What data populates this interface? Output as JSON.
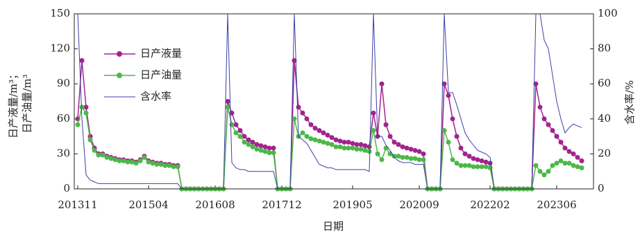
{
  "chart_data": {
    "type": "line",
    "xlabel": "日期",
    "ylabel": [
      "日产液量/m³；",
      "日产油量/m³"
    ],
    "y2label": "含水率/%",
    "categories": [
      "201311",
      "201312",
      "201401",
      "201402",
      "201403",
      "201404",
      "201405",
      "201406",
      "201407",
      "201408",
      "201409",
      "201410",
      "201411",
      "201412",
      "201501",
      "201502",
      "201503",
      "201504",
      "201505",
      "201506",
      "201507",
      "201508",
      "201509",
      "201510",
      "201511",
      "201512",
      "201601",
      "201602",
      "201603",
      "201604",
      "201605",
      "201606",
      "201607",
      "201608",
      "201609",
      "201610",
      "201611",
      "201612",
      "201701",
      "201702",
      "201703",
      "201704",
      "201705",
      "201706",
      "201707",
      "201708",
      "201709",
      "201710",
      "201711",
      "201712",
      "201801",
      "201802",
      "201803",
      "201804",
      "201805",
      "201806",
      "201807",
      "201808",
      "201809",
      "201810",
      "201811",
      "201812",
      "201901",
      "201902",
      "201903",
      "201904",
      "201905",
      "201906",
      "201907",
      "201908",
      "201909",
      "201910",
      "201911",
      "201912",
      "202001",
      "202002",
      "202003",
      "202004",
      "202005",
      "202006",
      "202007",
      "202008",
      "202009",
      "202010",
      "202011",
      "202012",
      "202101",
      "202102",
      "202103",
      "202104",
      "202105",
      "202106",
      "202107",
      "202108",
      "202109",
      "202110",
      "202111",
      "202112",
      "202201",
      "202202",
      "202203",
      "202204",
      "202205",
      "202206",
      "202207",
      "202208",
      "202209",
      "202210",
      "202211",
      "202212",
      "202301",
      "202302",
      "202303",
      "202304",
      "202305",
      "202306",
      "202307",
      "202308",
      "202309",
      "202310",
      "202311",
      "202312"
    ],
    "xticks": [
      "201311",
      "201504",
      "201608",
      "201712",
      "201905",
      "202009",
      "202202",
      "202306"
    ],
    "ylim": [
      0,
      150
    ],
    "yticks": [
      0,
      30,
      60,
      90,
      120,
      150
    ],
    "y2lim": [
      0,
      100
    ],
    "y2ticks": [
      0,
      20,
      40,
      60,
      80,
      100
    ],
    "legend": "upper left",
    "series": [
      {
        "name": "日产液量",
        "color": "#a3238e",
        "values": [
          60,
          110,
          70,
          45,
          35,
          30,
          30,
          28,
          27,
          26,
          25,
          25,
          24,
          24,
          23,
          25,
          28,
          24,
          23,
          22,
          22,
          21,
          21,
          20,
          20,
          0,
          0,
          0,
          0,
          0,
          0,
          0,
          0,
          0,
          0,
          0,
          75,
          65,
          55,
          50,
          45,
          42,
          40,
          38,
          37,
          36,
          35,
          35,
          0,
          0,
          0,
          0,
          110,
          70,
          65,
          60,
          55,
          52,
          50,
          48,
          46,
          44,
          42,
          41,
          40,
          40,
          39,
          38,
          38,
          37,
          36,
          65,
          45,
          90,
          55,
          45,
          40,
          38,
          36,
          35,
          34,
          33,
          32,
          30,
          0,
          0,
          0,
          0,
          90,
          80,
          60,
          45,
          35,
          30,
          28,
          26,
          25,
          24,
          23,
          22,
          0,
          0,
          0,
          0,
          0,
          0,
          0,
          0,
          0,
          0,
          90,
          70,
          60,
          55,
          50,
          45,
          40,
          35,
          32,
          30,
          27,
          24
        ]
      },
      {
        "name": "日产油量",
        "color": "#4cb848",
        "values": [
          55,
          70,
          65,
          42,
          33,
          29,
          29,
          27,
          26,
          25,
          24,
          24,
          23,
          23,
          22,
          24,
          27,
          23,
          22,
          21,
          21,
          20,
          20,
          19,
          19,
          0,
          0,
          0,
          0,
          0,
          0,
          0,
          0,
          0,
          0,
          0,
          70,
          55,
          48,
          45,
          40,
          38,
          36,
          34,
          33,
          32,
          31,
          31,
          0,
          0,
          0,
          0,
          60,
          45,
          48,
          45,
          43,
          42,
          41,
          40,
          39,
          38,
          36,
          36,
          35,
          35,
          35,
          34,
          34,
          33,
          32,
          50,
          30,
          25,
          35,
          30,
          28,
          28,
          27,
          27,
          26,
          26,
          25,
          25,
          0,
          0,
          0,
          0,
          50,
          40,
          25,
          22,
          20,
          20,
          20,
          19,
          19,
          19,
          19,
          18,
          0,
          0,
          0,
          0,
          0,
          0,
          0,
          0,
          0,
          0,
          20,
          15,
          12,
          15,
          20,
          22,
          24,
          22,
          22,
          20,
          19,
          18
        ]
      },
      {
        "name": "含水率",
        "color": "#3b3fa8",
        "axis": "y2",
        "values": [
          100,
          40,
          8,
          5,
          4,
          3,
          3,
          3,
          3,
          3,
          3,
          3,
          3,
          3,
          3,
          3,
          3,
          3,
          3,
          3,
          3,
          3,
          3,
          3,
          3,
          0,
          0,
          0,
          0,
          0,
          0,
          0,
          0,
          0,
          0,
          0,
          100,
          15,
          12,
          11,
          11,
          10,
          10,
          10,
          10,
          10,
          10,
          10,
          0,
          0,
          0,
          0,
          100,
          30,
          28,
          26,
          22,
          18,
          14,
          13,
          12,
          12,
          11,
          11,
          11,
          11,
          11,
          11,
          11,
          11,
          10,
          100,
          30,
          30,
          25,
          22,
          18,
          16,
          15,
          15,
          15,
          14,
          14,
          14,
          0,
          0,
          0,
          0,
          100,
          55,
          55,
          48,
          40,
          32,
          28,
          25,
          22,
          21,
          20,
          18,
          0,
          0,
          0,
          0,
          0,
          0,
          0,
          0,
          0,
          0,
          100,
          100,
          85,
          80,
          65,
          50,
          40,
          32,
          35,
          37,
          36,
          35
        ]
      }
    ]
  }
}
